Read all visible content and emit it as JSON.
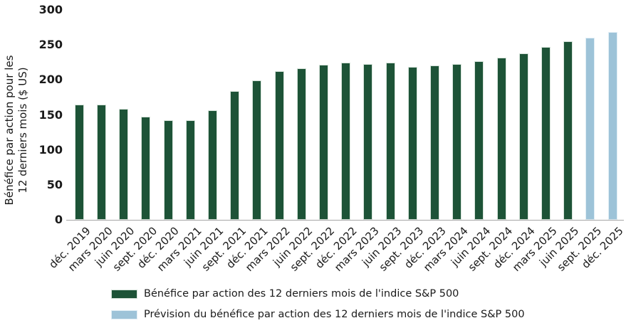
{
  "colors": {
    "bar_actual": "#1d5337",
    "bar_actual_border": "#d6e3da",
    "bar_forecast": "#9dc3d8",
    "bar_forecast_border": "#e0eef5",
    "axis_line": "#a6a6a6",
    "text": "#1a1a1a",
    "background": "#ffffff"
  },
  "chart_data": {
    "type": "bar",
    "title": "",
    "xlabel": "",
    "ylabel": "Bénéfice par action pour les 12 derniers mois ($ US)",
    "ylabel_lines": [
      "Bénéfice par action pour les",
      "12 derniers mois ($ US)"
    ],
    "ylim": [
      0,
      300
    ],
    "yticks": [
      0,
      50,
      100,
      150,
      200,
      250,
      300
    ],
    "grid": false,
    "legend_position": "bottom-left",
    "categories": [
      "déc. 2019",
      "mars 2020",
      "juin 2020",
      "sept. 2020",
      "déc. 2020",
      "mars 2021",
      "juin 2021",
      "sept. 2021",
      "déc. 2021",
      "mars 2022",
      "juin 2022",
      "sept. 2022",
      "déc. 2022",
      "mars 2023",
      "juin 2023",
      "sept. 2023",
      "déc. 2023",
      "mars 2024",
      "juin 2024",
      "sept. 2024",
      "déc. 2024",
      "mars 2025",
      "juin 2025",
      "sept. 2025",
      "déc. 2025"
    ],
    "series": [
      {
        "name": "Bénéfice par action des 12 derniers mois de l'indice S&P 500",
        "color": "#1d5337",
        "border_color": "#d6e3da",
        "values": [
          165,
          165,
          159,
          147,
          142,
          142,
          157,
          184,
          199,
          213,
          217,
          222,
          225,
          223,
          225,
          219,
          221,
          223,
          227,
          232,
          238,
          247,
          255,
          null,
          null
        ]
      },
      {
        "name": "Prévision du bénéfice par action des 12 derniers mois de l'indice S&P 500",
        "color": "#9dc3d8",
        "border_color": "#e0eef5",
        "values": [
          null,
          null,
          null,
          null,
          null,
          null,
          null,
          null,
          null,
          null,
          null,
          null,
          null,
          null,
          null,
          null,
          null,
          null,
          null,
          null,
          null,
          null,
          null,
          260,
          268
        ]
      }
    ]
  }
}
